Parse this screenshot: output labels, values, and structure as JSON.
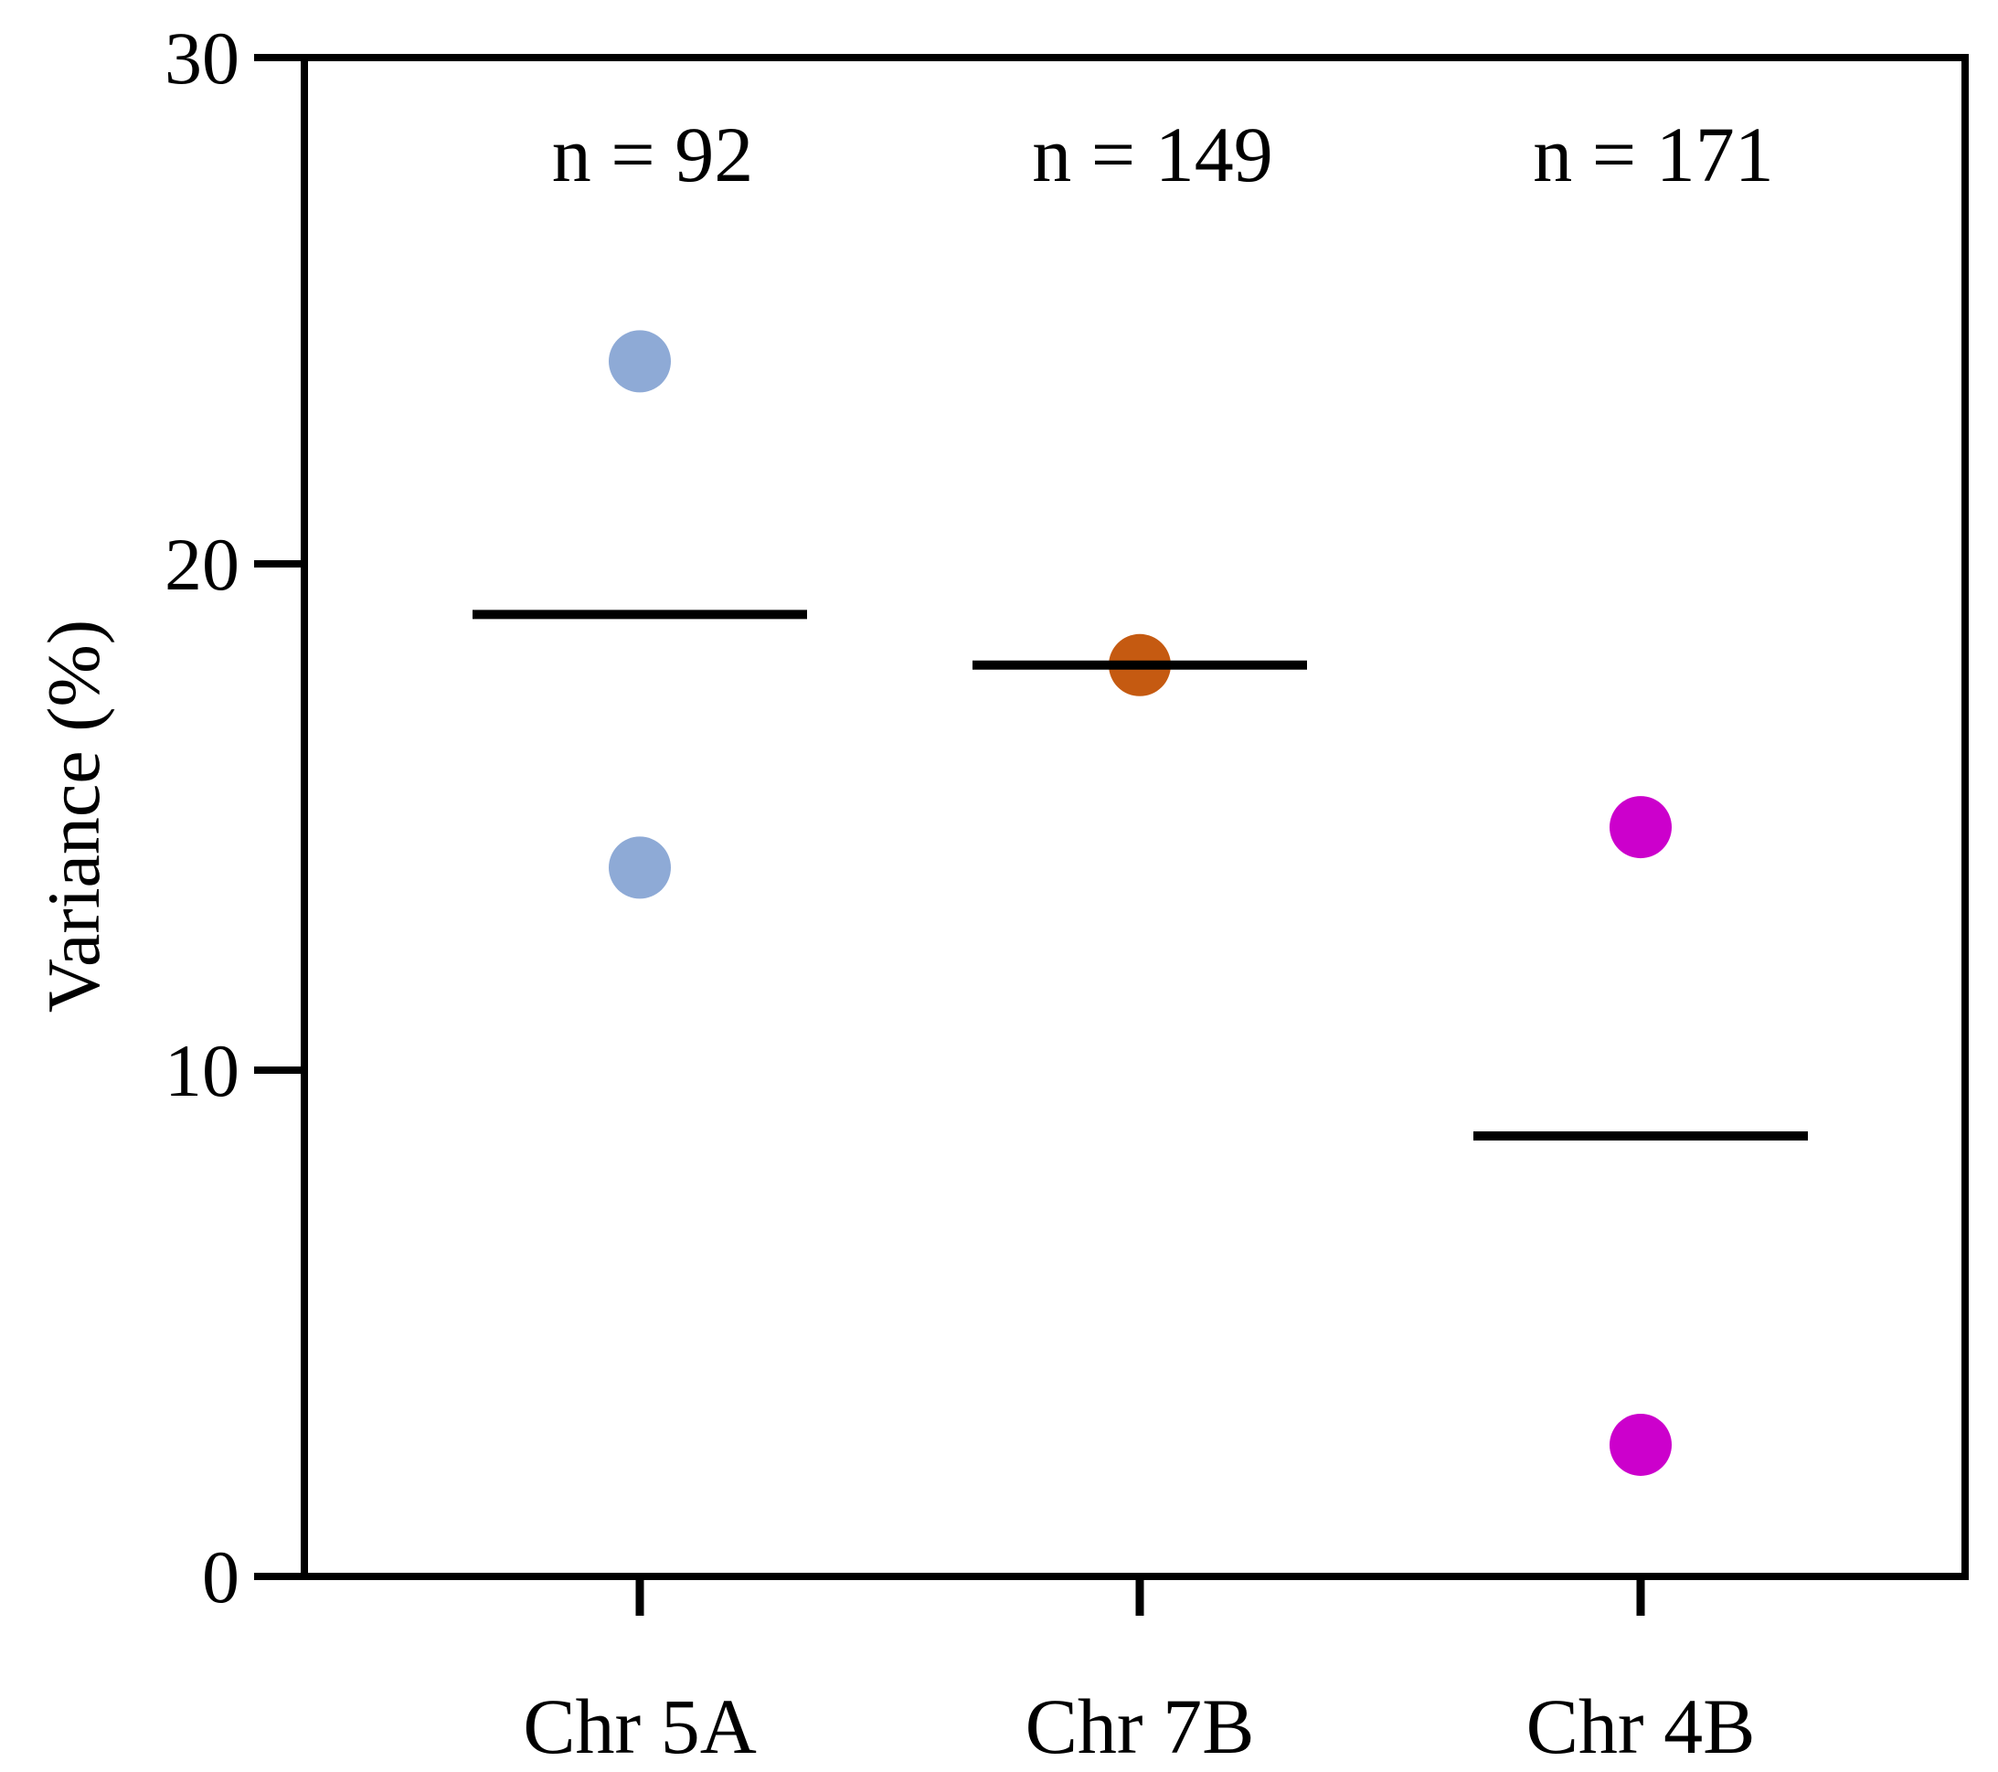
{
  "chart_data": {
    "type": "scatter",
    "categories": [
      "Chr 5A",
      "Chr 7B",
      "Chr 4B"
    ],
    "ylabel": "Variance (%)",
    "xlabel": "",
    "ylim": [
      0,
      30
    ],
    "yticks": [
      0,
      10,
      20,
      30
    ],
    "grid": false,
    "legend": "none",
    "groups": [
      {
        "category": "Chr 5A",
        "n_label": "n = 92",
        "color": "#8eaad6",
        "points": [
          24.0,
          14.0
        ],
        "center_line": 19.0
      },
      {
        "category": "Chr 7B",
        "n_label": "n = 149",
        "color": "#c55a11",
        "points": [
          18.0
        ],
        "center_line": 18.0
      },
      {
        "category": "Chr 4B",
        "n_label": "n = 171",
        "color": "#cc00cc",
        "points": [
          14.8,
          2.6
        ],
        "center_line": 8.7
      }
    ]
  }
}
